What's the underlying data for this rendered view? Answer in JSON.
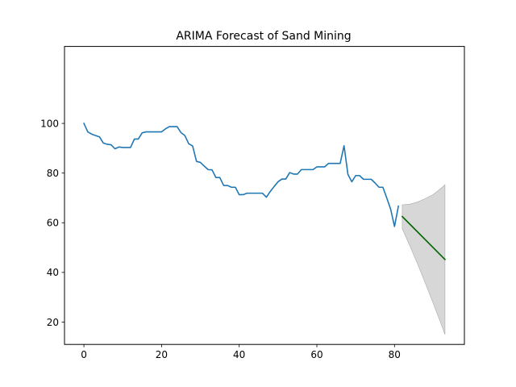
{
  "chart_data": {
    "type": "line",
    "title": "ARIMA Forecast of Sand Mining",
    "xlabel": "",
    "ylabel": "",
    "xlim": [
      -5,
      98
    ],
    "ylim": [
      11,
      131
    ],
    "x_ticks": [
      0,
      20,
      40,
      60,
      80
    ],
    "y_ticks": [
      20,
      40,
      60,
      80,
      100
    ],
    "grid": false,
    "legend": "none",
    "colors": {
      "history": "#1f77b4",
      "forecast": "#006400",
      "confidence_band": "#d3d3d3",
      "confidence_band_edge": "#a9a9a9"
    },
    "series": [
      {
        "x": [
          0,
          1,
          2,
          3,
          4,
          5,
          6,
          7,
          8,
          9,
          10,
          11,
          12,
          13,
          14,
          15,
          16,
          17,
          18,
          19,
          20,
          21,
          22,
          23,
          24,
          25,
          26,
          27,
          28,
          29,
          30,
          31,
          32,
          33,
          34,
          35,
          36,
          37,
          38,
          39,
          40,
          41,
          42,
          43,
          44,
          45,
          46,
          47,
          48,
          49,
          50,
          51,
          52,
          53,
          54,
          55,
          56,
          57,
          58,
          59,
          60,
          61,
          62,
          63,
          64,
          65,
          66,
          67,
          68,
          69,
          70,
          71,
          72,
          73,
          74,
          75,
          76,
          77,
          78,
          79,
          80,
          81
        ],
        "values": [
          100,
          96.6,
          95.7,
          95.1,
          94.6,
          92.1,
          91.6,
          91.4,
          89.8,
          90.5,
          90.3,
          90.3,
          90.3,
          93.7,
          93.7,
          96.2,
          96.6,
          96.6,
          96.6,
          96.6,
          96.6,
          97.8,
          98.7,
          98.7,
          98.7,
          96.3,
          95.1,
          91.8,
          90.9,
          84.7,
          84.3,
          82.8,
          81.4,
          81.3,
          78.2,
          78.2,
          75,
          75,
          74.3,
          74.3,
          71.3,
          71.3,
          71.9,
          71.9,
          71.9,
          71.9,
          71.9,
          70.3,
          72.6,
          74.6,
          76.5,
          77.6,
          77.6,
          80.2,
          79.6,
          79.6,
          81.4,
          81.4,
          81.4,
          81.4,
          82.5,
          82.5,
          82.5,
          83.9,
          83.9,
          83.9,
          83.9,
          91,
          79.5,
          76.5,
          79,
          79,
          77.5,
          77.5,
          77.5,
          76,
          74.3,
          74.3,
          70,
          65.5,
          58.5,
          66.7
        ]
      },
      {
        "x": [
          82,
          93
        ],
        "values": [
          62.5,
          45.2
        ]
      }
    ],
    "confidence_interval": {
      "x": [
        82,
        84,
        86,
        88,
        90,
        92,
        93
      ],
      "upper": [
        67.2,
        67.5,
        68.4,
        69.8,
        71.4,
        73.9,
        75.3
      ],
      "lower": [
        57.6,
        50.5,
        43.2,
        35.4,
        27.4,
        19.3,
        15.0
      ]
    }
  }
}
